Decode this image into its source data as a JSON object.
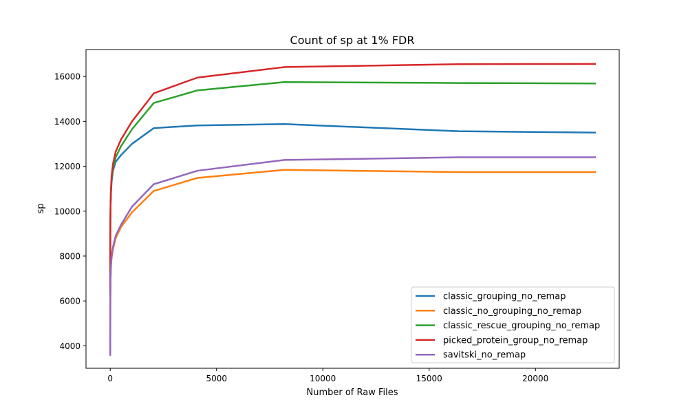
{
  "chart_data": {
    "type": "line",
    "title": "Count of sp at 1% FDR",
    "xlabel": "Number of Raw Files",
    "ylabel": "sp",
    "xlim": [
      -1140,
      23940
    ],
    "ylim": [
      3000,
      17200
    ],
    "xticks": [
      0,
      5000,
      10000,
      15000,
      20000
    ],
    "xtick_labels": [
      "0",
      "5000",
      "10000",
      "15000",
      "20000"
    ],
    "yticks": [
      4000,
      6000,
      8000,
      10000,
      12000,
      14000,
      16000
    ],
    "ytick_labels": [
      "4000",
      "6000",
      "8000",
      "10000",
      "12000",
      "14000",
      "16000"
    ],
    "grid": false,
    "legend_position": "lower-right",
    "x": [
      1,
      2,
      4,
      8,
      16,
      32,
      64,
      128,
      256,
      512,
      1024,
      2048,
      4096,
      8192,
      16384,
      22800
    ],
    "series": [
      {
        "name": "classic_grouping_no_remap",
        "color": "#1f77b4",
        "values": [
          6300,
          7400,
          8500,
          9400,
          10200,
          10800,
          11300,
          11800,
          12200,
          12500,
          13000,
          13700,
          13820,
          13880,
          13560,
          13500
        ]
      },
      {
        "name": "classic_no_grouping_no_remap",
        "color": "#ff7f0e",
        "values": [
          3600,
          4500,
          5500,
          6300,
          7000,
          7500,
          7900,
          8300,
          8800,
          9300,
          9950,
          10900,
          11480,
          11840,
          11740,
          11740
        ]
      },
      {
        "name": "classic_rescue_grouping_no_remap",
        "color": "#2ca02c",
        "values": [
          6350,
          7450,
          8600,
          9500,
          10250,
          10850,
          11400,
          11900,
          12400,
          12900,
          13650,
          14820,
          15380,
          15750,
          15710,
          15690
        ]
      },
      {
        "name": "picked_protein_group_no_remap",
        "color": "#d62728",
        "values": [
          6400,
          7500,
          8700,
          9600,
          10350,
          10950,
          11550,
          12100,
          12650,
          13200,
          14000,
          15250,
          15950,
          16420,
          16550,
          16560
        ]
      },
      {
        "name": "savitski_no_remap",
        "color": "#9467bd",
        "values": [
          3600,
          4500,
          5500,
          6300,
          7000,
          7600,
          8000,
          8400,
          8900,
          9400,
          10200,
          11200,
          11800,
          12280,
          12400,
          12400
        ]
      }
    ]
  }
}
